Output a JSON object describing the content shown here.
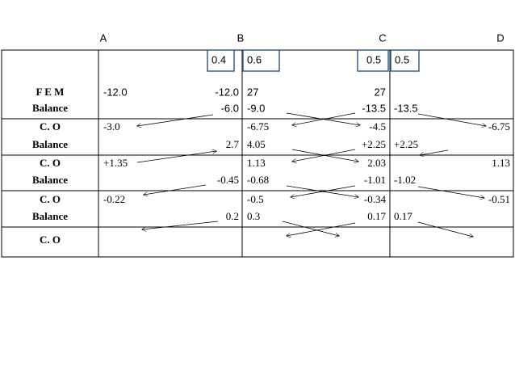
{
  "joints": [
    "A",
    "B",
    "C",
    "D"
  ],
  "distribution_factors": [
    "0.4",
    "0.6",
    "0.5",
    "0.5"
  ],
  "rows": [
    {
      "label": [
        "F E M",
        "Balance"
      ],
      "lines": [
        [
          "-12.0",
          "-12.0",
          "27",
          "27",
          null,
          null
        ],
        [
          null,
          "-6.0",
          "-9.0",
          "-13.5",
          "-13.5",
          null
        ]
      ]
    },
    {
      "label": [
        "C. O",
        "Balance"
      ],
      "lines": [
        [
          "-3.0",
          null,
          "-6.75",
          "-4.5",
          null,
          "-6.75"
        ],
        [
          null,
          "2.7",
          "4.05",
          "+2.25",
          "+2.25",
          null
        ]
      ]
    },
    {
      "label": [
        "C. O",
        "Balance"
      ],
      "lines": [
        [
          "+1.35",
          null,
          "1.13",
          "2.03",
          null,
          "1.13"
        ],
        [
          null,
          "-0.45",
          "-0.68",
          "-1.01",
          "-1.02",
          null
        ]
      ]
    },
    {
      "label": [
        "C. O",
        "Balance"
      ],
      "lines": [
        [
          "-0.22",
          null,
          "-0.5",
          "-0.34",
          null,
          "-0.51"
        ],
        [
          null,
          "0.2",
          "0.3",
          "0.17",
          "0.17",
          null
        ]
      ]
    },
    {
      "label": [
        "C. O"
      ],
      "lines": []
    }
  ]
}
